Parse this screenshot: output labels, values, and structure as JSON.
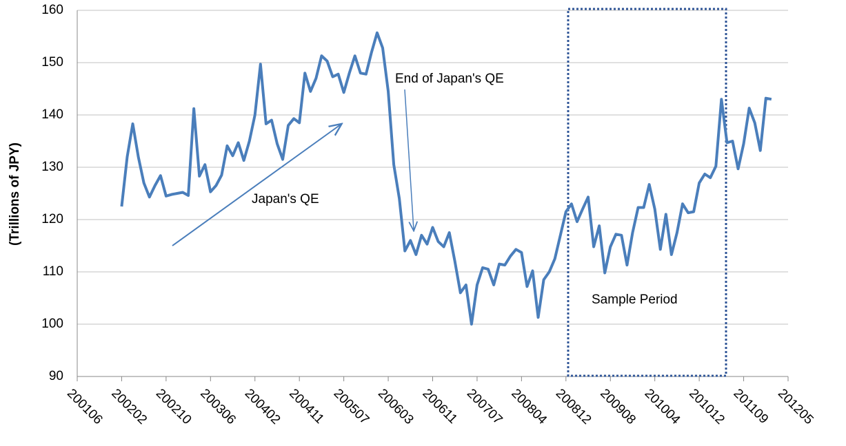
{
  "chart_data": {
    "type": "line",
    "y_label": "(Trillions of JPY)",
    "annotations": [
      "End of Japan's QE",
      "Japan's QE",
      "Sample Period"
    ],
    "categories": [
      "200106",
      null,
      null,
      null,
      null,
      null,
      null,
      null,
      "200202",
      null,
      null,
      null,
      null,
      null,
      null,
      null,
      "200210",
      null,
      null,
      null,
      null,
      null,
      null,
      null,
      "200306",
      null,
      null,
      null,
      null,
      null,
      null,
      null,
      "200402",
      null,
      null,
      null,
      null,
      null,
      null,
      null,
      "200411",
      null,
      null,
      null,
      null,
      null,
      null,
      null,
      "200507",
      null,
      null,
      null,
      null,
      null,
      null,
      null,
      "200603",
      null,
      null,
      null,
      null,
      null,
      null,
      null,
      "200611",
      null,
      null,
      null,
      null,
      null,
      null,
      null,
      "200707",
      null,
      null,
      null,
      null,
      null,
      null,
      null,
      "200804",
      null,
      null,
      null,
      null,
      null,
      null,
      null,
      "200812",
      null,
      null,
      null,
      null,
      null,
      null,
      null,
      "200908",
      null,
      null,
      null,
      null,
      null,
      null,
      null,
      "201004",
      null,
      null,
      null,
      null,
      null,
      null,
      null,
      "201012",
      null,
      null,
      null,
      null,
      null,
      null,
      null,
      "201109",
      null,
      null,
      null,
      null,
      null,
      null,
      null,
      "201205"
    ],
    "series": [
      {
        "color": "#4a7ebb",
        "values": [
          null,
          null,
          null,
          null,
          null,
          null,
          null,
          null,
          122.5,
          132,
          138.3,
          132,
          127,
          124.3,
          126.5,
          128.4,
          124.5,
          124.8,
          125,
          125.2,
          124.6,
          141.2,
          128.3,
          130.5,
          125.3,
          126.5,
          128.5,
          134.1,
          132.2,
          134.7,
          131.3,
          135,
          140,
          149.7,
          138.3,
          139,
          134.5,
          131.5,
          138,
          139.3,
          138.5,
          148,
          144.5,
          147,
          151.3,
          150.3,
          147.3,
          147.8,
          144.3,
          148,
          151.3,
          148,
          147.8,
          152,
          155.7,
          152.8,
          144.5,
          130.5,
          124,
          114,
          116,
          113.3,
          117,
          115.3,
          118.5,
          115.8,
          114.8,
          117.5,
          112,
          106,
          107.5,
          100,
          107.5,
          110.8,
          110.5,
          107.5,
          111.5,
          111.3,
          113,
          114.3,
          113.7,
          107.2,
          110.2,
          101.3,
          108.5,
          110,
          112.5,
          117,
          121.5,
          123,
          119.6,
          122,
          124.3,
          114.8,
          118.8,
          109.8,
          114.8,
          117.2,
          117,
          111.3,
          117.5,
          122.3,
          122.3,
          126.7,
          122,
          114.3,
          121,
          113.3,
          117.5,
          123,
          121.3,
          121.5,
          127,
          128.7,
          128,
          130.2,
          143,
          134.7,
          135,
          129.7,
          134.5,
          141.3,
          138.5,
          133.2,
          143.2,
          143,
          null,
          null,
          null
        ]
      }
    ],
    "ylim": [
      90,
      160
    ],
    "yticks": [
      90,
      100,
      110,
      120,
      130,
      140,
      150,
      160
    ],
    "grid": true
  }
}
